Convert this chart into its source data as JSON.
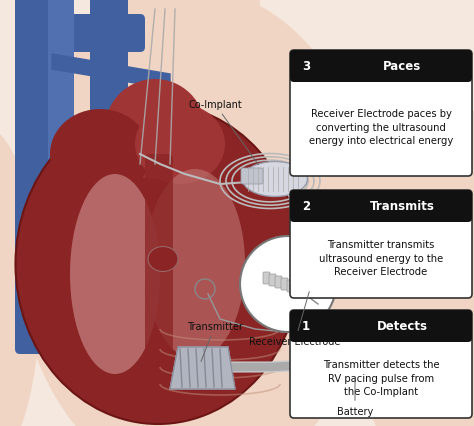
{
  "bg_color": "#f5e8de",
  "skin_color": "#f0d5c5",
  "heart_dark": "#8b2525",
  "heart_mid": "#a03535",
  "heart_light": "#c07070",
  "heart_pink": "#d4948a",
  "blue_vessel": "#4060a0",
  "blue_vessel2": "#5070b0",
  "device_gray": "#c8ccd6",
  "device_dark": "#888898",
  "wire_gray": "#aaaaaa",
  "box_header_bg": "#111111",
  "box_header_text": "#ffffff",
  "box_body_bg": "#ffffff",
  "box_border": "#333333",
  "text_dark": "#111111",
  "body_fontsize": 7.2,
  "heading_fontsize": 8.5,
  "number_fontsize": 8.5,
  "label_fontsize": 7.0,
  "boxes": [
    {
      "number": "3",
      "heading": "Paces",
      "line1": "Receiver Electrode ",
      "bold1": "paces",
      "line1b": " by",
      "line2": "converting the ultrasound",
      "line3": "energy into electrical energy",
      "bx": 0.615,
      "by": 0.685,
      "bw": 0.368,
      "bh": 0.255
    },
    {
      "number": "2",
      "heading": "Transmits",
      "line1": "Transmitter ",
      "bold1": "transmits",
      "line1b": "",
      "line2": "ultrasound energy to the",
      "line3": "Receiver Electrode",
      "bx": 0.615,
      "by": 0.385,
      "bw": 0.368,
      "bh": 0.215
    },
    {
      "number": "1",
      "heading": "Detects",
      "line1": "Transmitter ",
      "bold1": "detects",
      "line1b": " the",
      "line2": "RV pacing pulse from",
      "line3": "the Co-Implant",
      "bx": 0.615,
      "by": 0.085,
      "bw": 0.368,
      "bh": 0.215
    }
  ]
}
